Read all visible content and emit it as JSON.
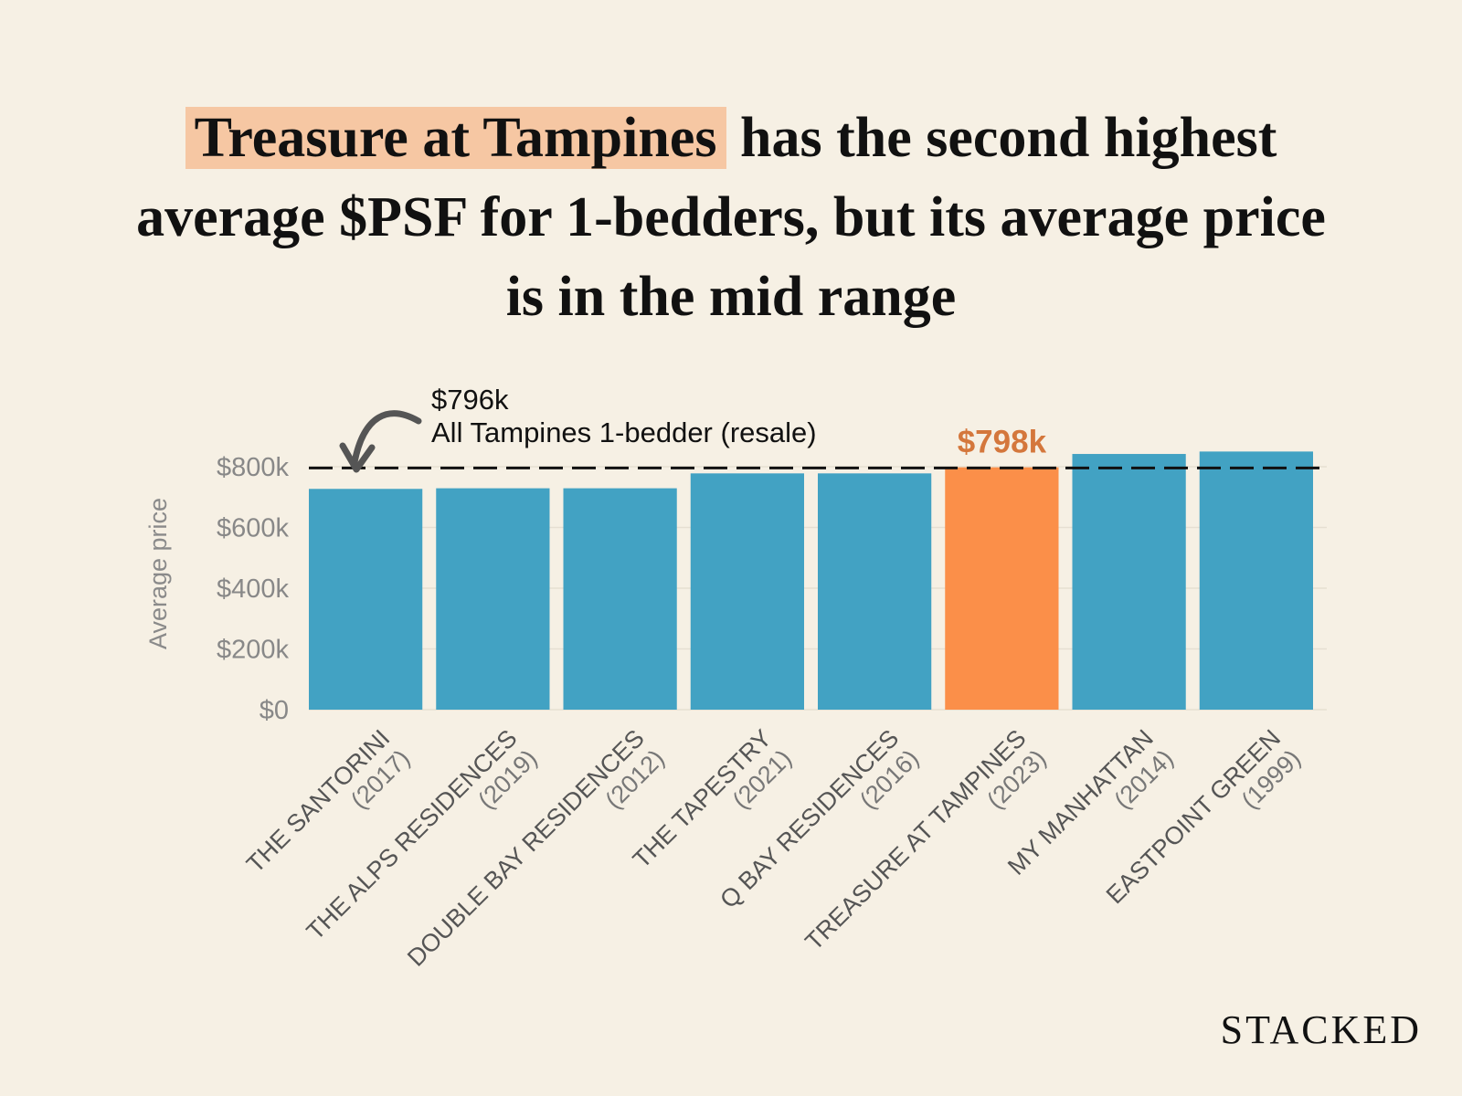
{
  "title": {
    "highlight": "Treasure at Tampines",
    "rest_line1": " has the second highest",
    "line2": "average $PSF for 1-bedders, but its average price",
    "line3": "is in the mid range"
  },
  "brand": "STACKED",
  "colors": {
    "background": "#f6f0e4",
    "bar": "#42a2c3",
    "highlight_bar": "#fb8f49",
    "highlight_text": "#d4773c",
    "title_highlight": "#f6c7a3"
  },
  "chart_data": {
    "type": "bar",
    "ylabel": "Average price",
    "xlabel": "",
    "ylim": [
      0,
      800000
    ],
    "yticks": [
      0,
      200000,
      400000,
      600000,
      800000
    ],
    "ytick_labels": [
      "$0",
      "$200k",
      "$400k",
      "$600k",
      "$800k"
    ],
    "grid": true,
    "categories": [
      {
        "name": "THE SANTORINI",
        "year": "(2017)"
      },
      {
        "name": "THE ALPS RESIDENCES",
        "year": "(2019)"
      },
      {
        "name": "DOUBLE BAY RESIDENCES",
        "year": "(2012)"
      },
      {
        "name": "THE TAPESTRY",
        "year": "(2021)"
      },
      {
        "name": "Q BAY RESIDENCES",
        "year": "(2016)"
      },
      {
        "name": "TREASURE AT TAMPINES",
        "year": "(2023)"
      },
      {
        "name": "MY MANHATTAN",
        "year": "(2014)"
      },
      {
        "name": "EASTPOINT GREEN",
        "year": "(1999)"
      }
    ],
    "values": [
      727000,
      729000,
      729000,
      778000,
      778000,
      798000,
      842000,
      850000
    ],
    "highlight_index": 5,
    "highlight_label": "$798k",
    "reference_line": {
      "value": 796000,
      "label_value": "$796k",
      "label_text": "All Tampines 1-bedder (resale)"
    }
  }
}
